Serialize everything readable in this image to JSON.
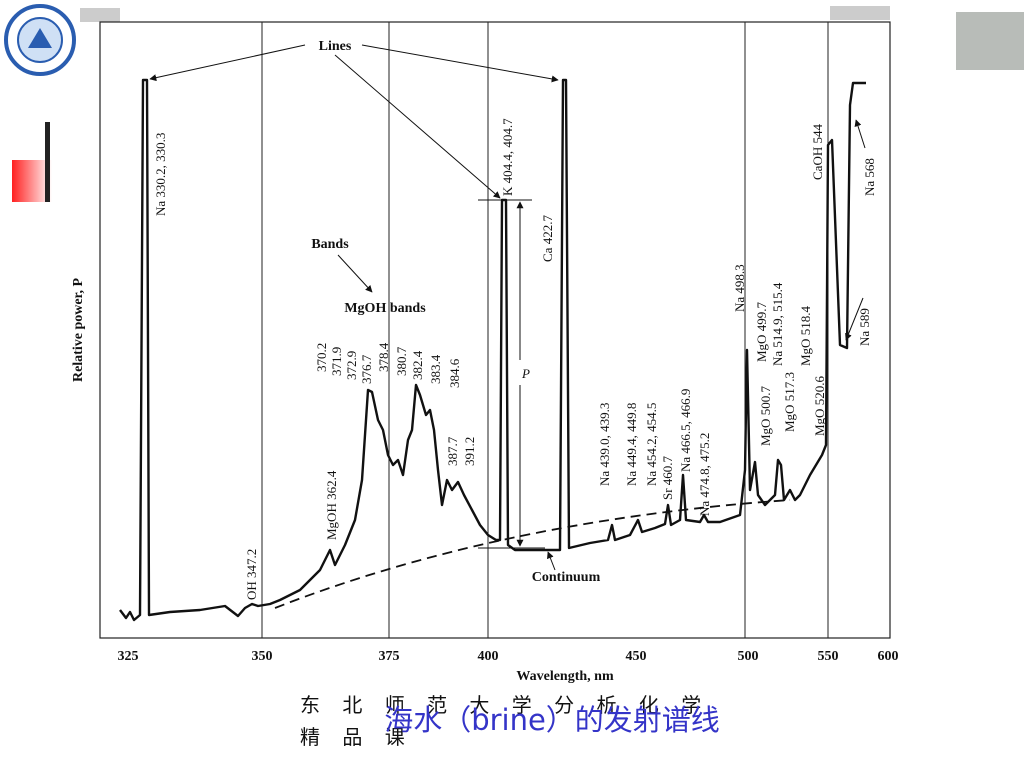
{
  "figure": {
    "y_axis_label": "Relative power, P",
    "x_axis_label": "Wavelength, nm",
    "x_ticks": [
      "325",
      "350",
      "375",
      "400",
      "450",
      "500",
      "550",
      "600"
    ],
    "annotations": {
      "lines": "Lines",
      "bands": "Bands",
      "mgoh_bands": "MgOH bands",
      "continuum": "Continuum",
      "p": "P"
    },
    "peak_labels": [
      "Na 330.2, 330.3",
      "OH 347.2",
      "MgOH 362.4",
      "370.2",
      "371.9",
      "372.9",
      "376.7",
      "378.4",
      "380.7",
      "382.4",
      "383.4",
      "384.6",
      "387.7",
      "391.2",
      "K 404.4, 404.7",
      "Ca 422.7",
      "Na 439.0, 439.3",
      "Na 449.4, 449.8",
      "Na 454.2, 454.5",
      "Sr 460.7",
      "Na 466.5, 466.9",
      "Na 474.8, 475.2",
      "Na 498.3",
      "MgO 499.7",
      "MgO 500.7",
      "Na 514.9, 515.4",
      "MgO 517.3",
      "MgO 518.4",
      "MgO 520.6",
      "CaOH 544",
      "Na 568",
      "Na 589"
    ]
  },
  "footer": {
    "school": "东 北 师 范 大 学 分 析 化 学",
    "course": "精 品 课",
    "title": "海水（brine）的发射谱线"
  }
}
